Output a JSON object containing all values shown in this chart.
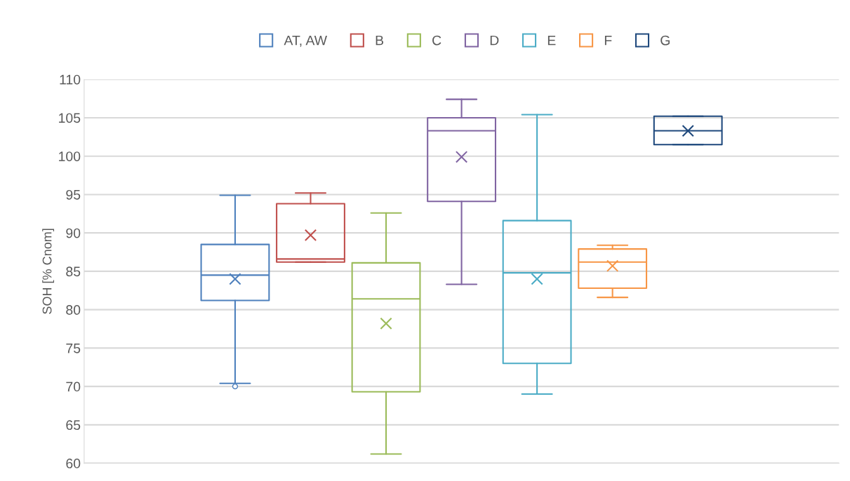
{
  "chart_data": {
    "type": "box",
    "ylabel": "SOH [% Cnom]",
    "categories": [
      null
    ],
    "ylim": [
      60,
      110
    ],
    "yticks": [
      60,
      65,
      70,
      75,
      80,
      85,
      90,
      95,
      100,
      105,
      110
    ],
    "grid": "y",
    "legend": "top",
    "tick_labels": "y",
    "series": [
      {
        "name": "AT, AW",
        "color": "#4f81bd",
        "boxes": [
          {
            "low": 70.4,
            "q1": 81.2,
            "median": 84.5,
            "q3": 88.5,
            "high": 94.9,
            "mean": 84.0,
            "outliers": [
              70.0
            ]
          }
        ]
      },
      {
        "name": "B",
        "color": "#c0504d",
        "boxes": [
          {
            "low": 86.2,
            "q1": 86.2,
            "median": 86.6,
            "q3": 93.8,
            "high": 95.2,
            "mean": 89.7
          }
        ]
      },
      {
        "name": "C",
        "color": "#9bbb59",
        "boxes": [
          {
            "low": 61.2,
            "q1": 69.3,
            "median": 81.4,
            "q3": 86.1,
            "high": 92.6,
            "mean": 78.2
          }
        ]
      },
      {
        "name": "D",
        "color": "#8064a2",
        "boxes": [
          {
            "low": 83.3,
            "q1": 94.1,
            "median": 103.3,
            "q3": 105.0,
            "high": 107.4,
            "mean": 99.9
          }
        ]
      },
      {
        "name": "E",
        "color": "#4bacc6",
        "boxes": [
          {
            "low": 69.0,
            "q1": 73.0,
            "median": 84.8,
            "q3": 91.6,
            "high": 105.4,
            "mean": 84.0
          }
        ]
      },
      {
        "name": "F",
        "color": "#f79646",
        "boxes": [
          {
            "low": 81.6,
            "q1": 82.8,
            "median": 86.2,
            "q3": 87.9,
            "high": 88.4,
            "mean": 85.7
          }
        ]
      },
      {
        "name": "G",
        "color": "#1f497d",
        "boxes": [
          {
            "low": 101.5,
            "q1": 101.5,
            "median": 103.3,
            "q3": 105.2,
            "high": 105.2,
            "mean": 103.3
          }
        ]
      }
    ]
  }
}
